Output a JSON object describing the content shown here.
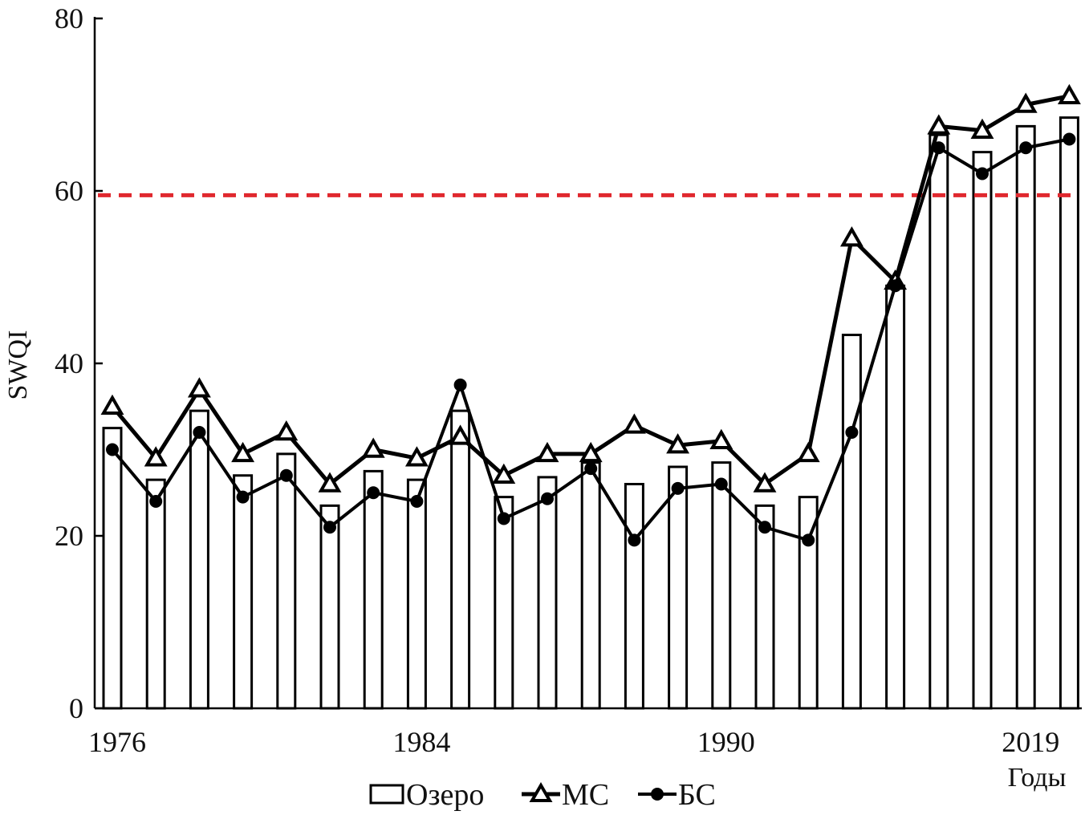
{
  "chart_data": {
    "type": "bar",
    "ylabel": "SWQI",
    "xlabel": "Годы",
    "ylim": [
      0,
      80
    ],
    "yticks": [
      0,
      20,
      40,
      60,
      80
    ],
    "xtick_labels": [
      {
        "index": 0,
        "label": "1976"
      },
      {
        "index": 7,
        "label": "1984"
      },
      {
        "index": 14,
        "label": "1990"
      },
      {
        "index": 21,
        "label": "2019"
      }
    ],
    "reference_line": {
      "value": 59.5,
      "color": "#e0282e",
      "style": "dashed"
    },
    "series": [
      {
        "name": "Озеро",
        "type": "bar",
        "values": [
          32.5,
          26.5,
          34.5,
          27.0,
          29.5,
          23.5,
          27.5,
          26.5,
          34.5,
          24.5,
          26.8,
          28.5,
          26.0,
          28.0,
          28.5,
          23.5,
          24.5,
          43.3,
          49.0,
          66.5,
          64.5,
          67.5,
          68.5
        ]
      },
      {
        "name": "МС",
        "type": "line",
        "marker": "triangle",
        "values": [
          35.0,
          29.0,
          37.0,
          29.5,
          32.0,
          26.0,
          30.0,
          29.0,
          31.5,
          27.0,
          29.5,
          29.5,
          32.8,
          30.5,
          31.0,
          26.0,
          29.5,
          54.5,
          49.5,
          67.5,
          67.0,
          70.0,
          71.0
        ]
      },
      {
        "name": "БС",
        "type": "line",
        "marker": "circle",
        "values": [
          30.0,
          24.0,
          32.0,
          24.5,
          27.0,
          21.0,
          25.0,
          24.0,
          37.5,
          22.0,
          24.3,
          27.8,
          19.5,
          25.5,
          26.0,
          21.0,
          19.5,
          32.0,
          49.0,
          65.0,
          62.0,
          65.0,
          66.0
        ]
      }
    ],
    "colors": {
      "bar_fill": "#ffffff",
      "stroke": "#000000",
      "reference": "#e0282e"
    }
  }
}
